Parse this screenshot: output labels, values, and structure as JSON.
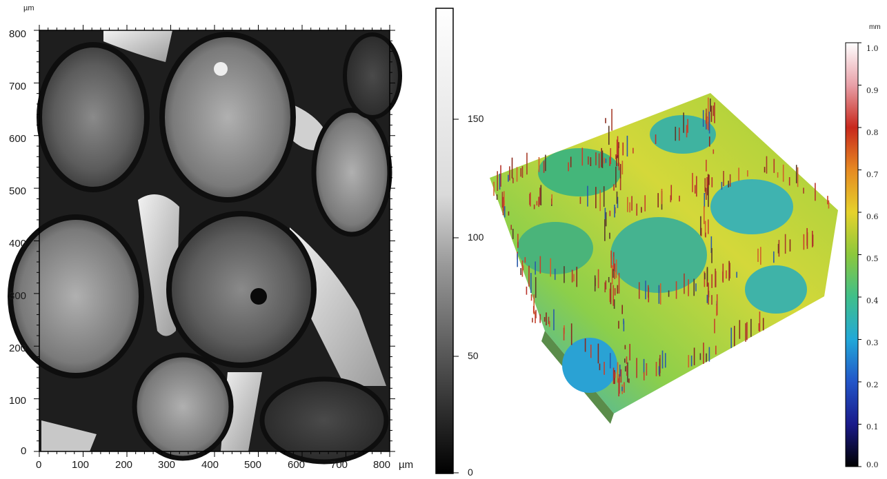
{
  "microscope_image": {
    "unit_top": "µm",
    "unit_bottom": "µm",
    "y_ticks": [
      "800",
      "700",
      "600",
      "500",
      "400",
      "300",
      "200",
      "100",
      "0"
    ],
    "x_ticks": [
      "0",
      "100",
      "200",
      "300",
      "400",
      "500",
      "600",
      "700",
      "800"
    ]
  },
  "grayscale_colorbar": {
    "ticks": [
      "150",
      "100",
      "50",
      "0"
    ]
  },
  "surface_3d": {
    "unit": "mm",
    "colorbar_ticks": [
      "1.0",
      "0.9",
      "0.8",
      "0.7",
      "0.6",
      "0.5",
      "0.4",
      "0.3",
      "0.2",
      "0.1",
      "0.0"
    ]
  }
}
